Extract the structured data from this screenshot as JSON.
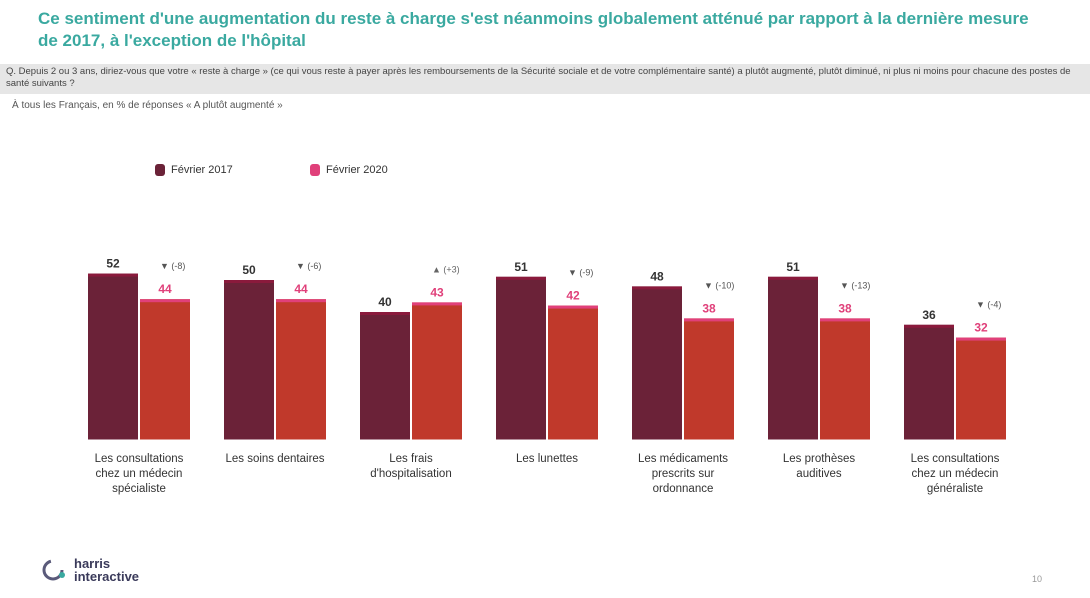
{
  "title": "Ce sentiment d'une augmentation du reste à charge s'est néanmoins globalement atténué par rapport à la dernière mesure de 2017, à l'exception de l'hôpital",
  "question": "Q. Depuis 2 ou 3 ans, diriez-vous que votre « reste à charge » (ce qui vous reste à payer après les remboursements de la Sécurité sociale et de votre complémentaire santé) a plutôt augmenté, plutôt diminué, ni plus ni moins pour chacune des postes de santé suivants ?",
  "base": "À tous les Français, en % de réponses « A plutôt augmenté »",
  "colors": {
    "s2017": "#6b2238",
    "s2020": "#c0392b",
    "edge2017": "#8a1a3c",
    "edge2020": "#e0407a",
    "teal": "#3aa9a0"
  },
  "chart_data": {
    "type": "bar",
    "categories": [
      "Les consultations chez un médecin spécialiste",
      "Les soins dentaires",
      "Les frais d'hospitalisation",
      "Les lunettes",
      "Les médicaments prescrits sur ordonnance",
      "Les prothèses auditives",
      "Les consultations chez un médecin généraliste"
    ],
    "category_lines": [
      [
        "Les consultations",
        "chez un médecin",
        "spécialiste"
      ],
      [
        "Les soins dentaires"
      ],
      [
        "Les frais",
        "d'hospitalisation"
      ],
      [
        "Les lunettes"
      ],
      [
        "Les médicaments",
        "prescrits sur",
        "ordonnance"
      ],
      [
        "Les prothèses",
        "auditives"
      ],
      [
        "Les consultations",
        "chez un médecin",
        "généraliste"
      ]
    ],
    "series": [
      {
        "name": "Février 2017",
        "values": [
          52,
          50,
          40,
          51,
          48,
          51,
          36
        ]
      },
      {
        "name": "Février 2020",
        "values": [
          44,
          44,
          43,
          42,
          38,
          38,
          32
        ]
      }
    ],
    "changes": [
      "▼ (-8)",
      "▼ (-6)",
      "▲ (+3)",
      "▼ (-9)",
      "▼ (-10)",
      "▼ (-13)",
      "▼ (-4)"
    ],
    "change_direction": [
      "down",
      "down",
      "up",
      "down",
      "down",
      "down",
      "down"
    ],
    "ylim": [
      0,
      60
    ],
    "legend_position": "top-left",
    "grid": false
  },
  "logo": {
    "line1": "harris",
    "line2": "interactive"
  },
  "page_number": "10"
}
